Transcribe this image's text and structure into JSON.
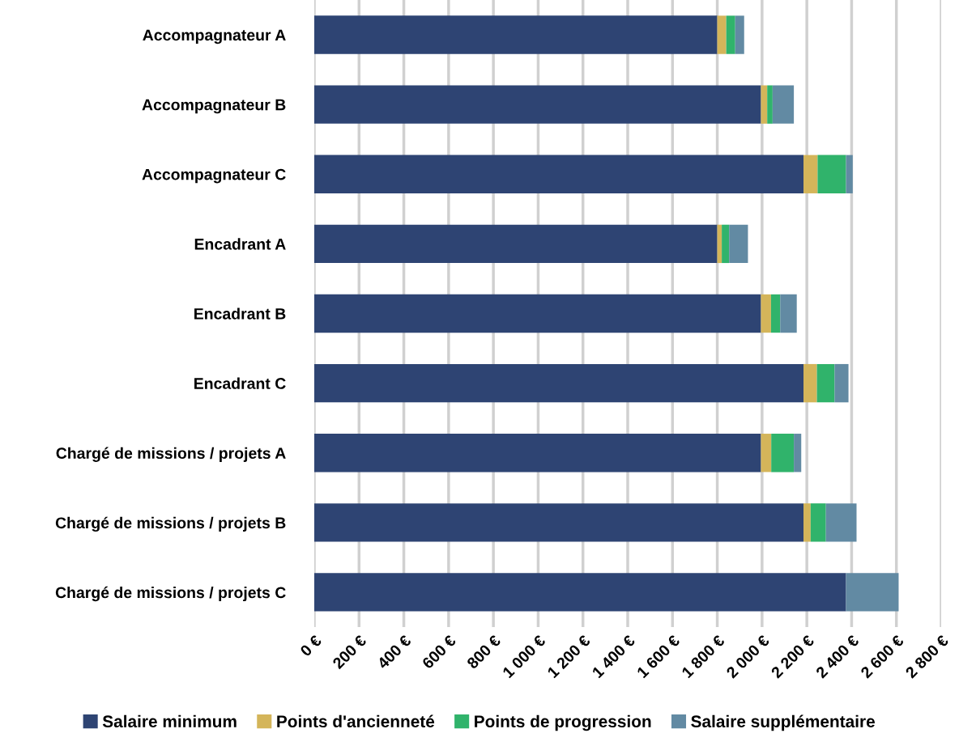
{
  "chart_data": {
    "type": "bar",
    "orientation": "horizontal",
    "stacked": true,
    "categories": [
      "Accompagnateur A",
      "Accompagnateur B",
      "Accompagnateur C",
      "Encadrant A",
      "Encadrant B",
      "Encadrant C",
      "Chargé de missions / projets A",
      "Chargé de missions / projets B",
      "Chargé de missions / projets C"
    ],
    "series": [
      {
        "name": "Salaire minimum",
        "color": "#2e4473",
        "values": [
          1800,
          1995,
          2185,
          1800,
          1995,
          2185,
          1995,
          2185,
          2375
        ]
      },
      {
        "name": "Points d'ancienneté",
        "color": "#d4b55a",
        "values": [
          40,
          28,
          63,
          20,
          45,
          60,
          46,
          32,
          0
        ]
      },
      {
        "name": "Points de progression",
        "color": "#30b36b",
        "values": [
          40,
          24,
          127,
          33,
          41,
          79,
          101,
          68,
          0
        ]
      },
      {
        "name": "Salaire supplémentaire",
        "color": "#628aa3",
        "values": [
          40,
          95,
          30,
          84,
          74,
          62,
          33,
          137,
          235
        ]
      }
    ],
    "xlim": [
      0,
      2800
    ],
    "xticks": [
      {
        "value": 0,
        "label": "0 €"
      },
      {
        "value": 200,
        "label": "200 €"
      },
      {
        "value": 400,
        "label": "400 €"
      },
      {
        "value": 600,
        "label": "600 €"
      },
      {
        "value": 800,
        "label": "800 €"
      },
      {
        "value": 1000,
        "label": "1 000 €"
      },
      {
        "value": 1200,
        "label": "1 200 €"
      },
      {
        "value": 1400,
        "label": "1 400 €"
      },
      {
        "value": 1600,
        "label": "1 600 €"
      },
      {
        "value": 1800,
        "label": "1 800 €"
      },
      {
        "value": 2000,
        "label": "2 000 €"
      },
      {
        "value": 2200,
        "label": "2 200 €"
      },
      {
        "value": 2400,
        "label": "2 400 €"
      },
      {
        "value": 2600,
        "label": "2 600 €"
      },
      {
        "value": 2800,
        "label": "2 800 €"
      }
    ],
    "grid": "x",
    "legend": "bottom"
  }
}
